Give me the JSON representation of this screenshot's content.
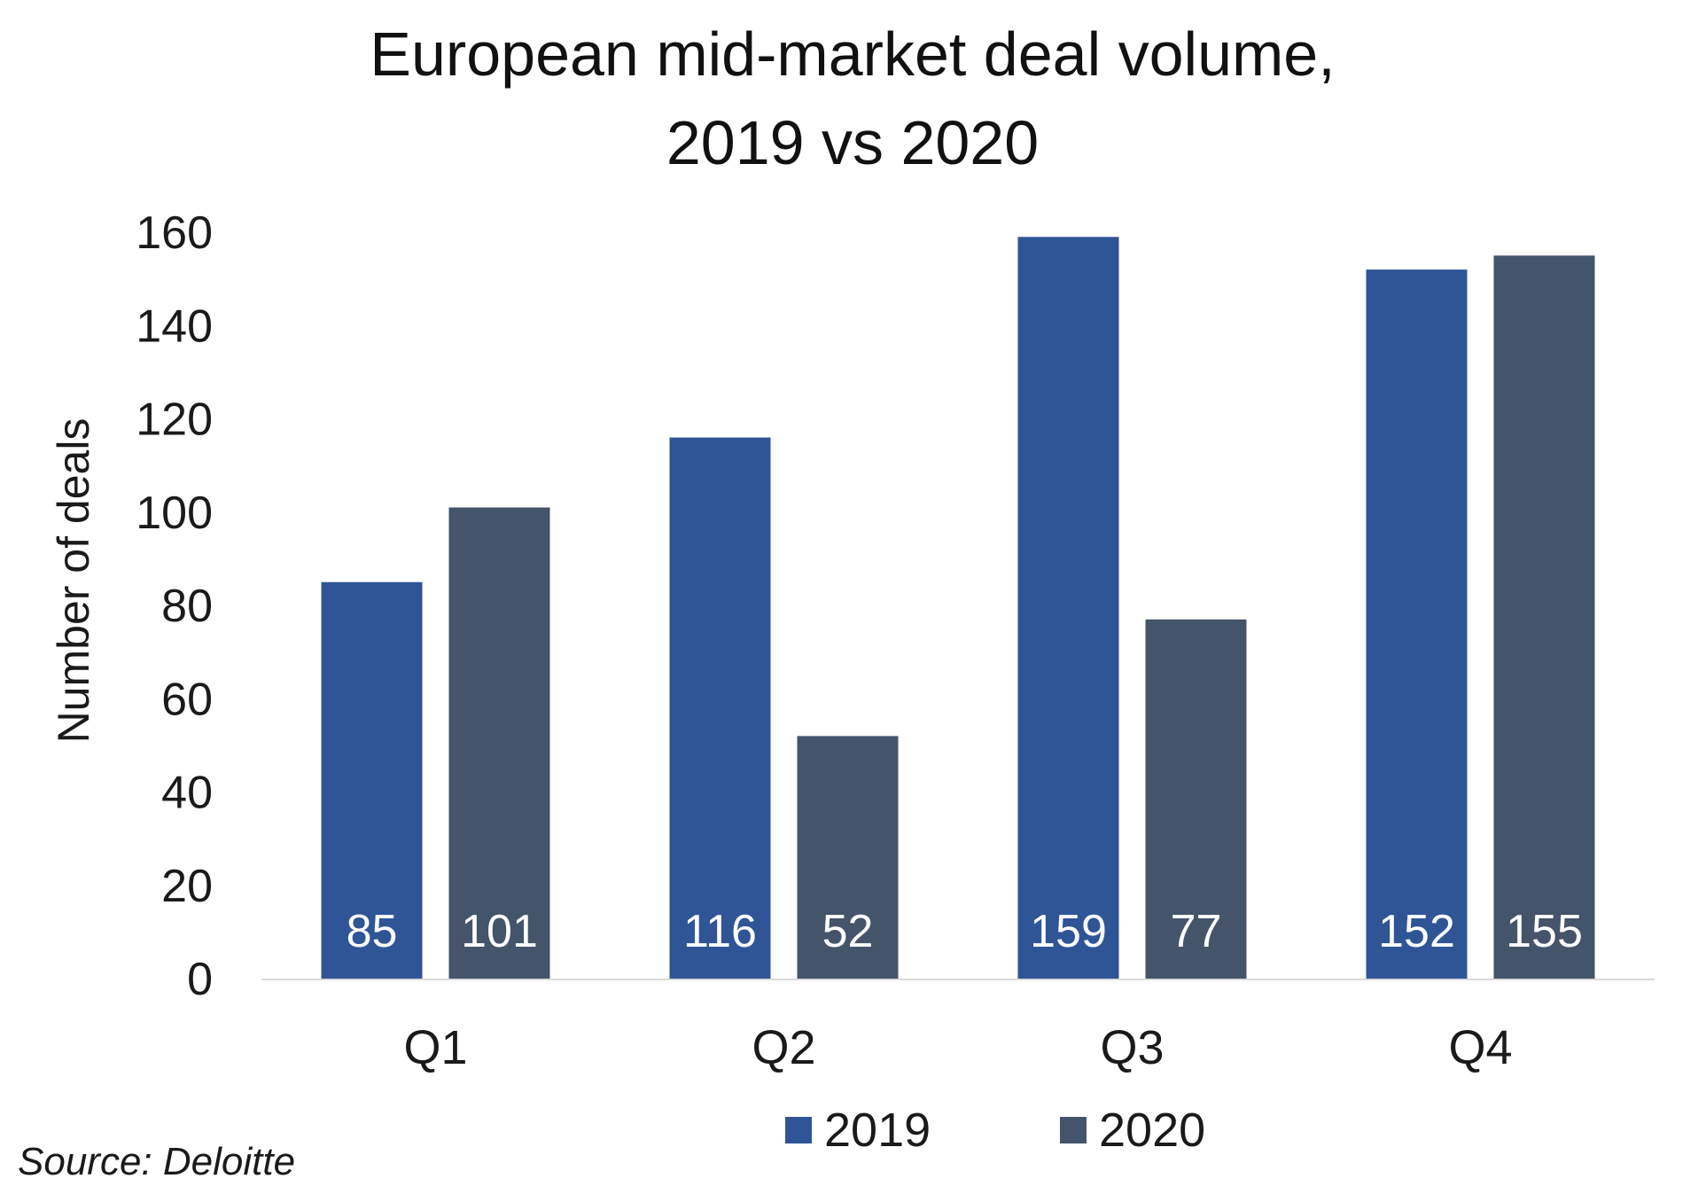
{
  "chart_data": {
    "type": "bar",
    "title_lines": [
      "European mid-market deal volume,",
      "2019 vs 2020"
    ],
    "ylabel": "Number of deals",
    "xlabel": "",
    "categories": [
      "Q1",
      "Q2",
      "Q3",
      "Q4"
    ],
    "yticks": [
      "0",
      "20",
      "40",
      "60",
      "80",
      "100",
      "120",
      "140",
      "160"
    ],
    "ylim": [
      0,
      160
    ],
    "grid": false,
    "legend_position": "bottom",
    "series": [
      {
        "name": "2019",
        "color": "#2f5597",
        "values": [
          85,
          116,
          159,
          152
        ]
      },
      {
        "name": "2020",
        "color": "#44546a",
        "values": [
          101,
          52,
          77,
          155
        ]
      }
    ],
    "source": "Source: Deloitte"
  }
}
